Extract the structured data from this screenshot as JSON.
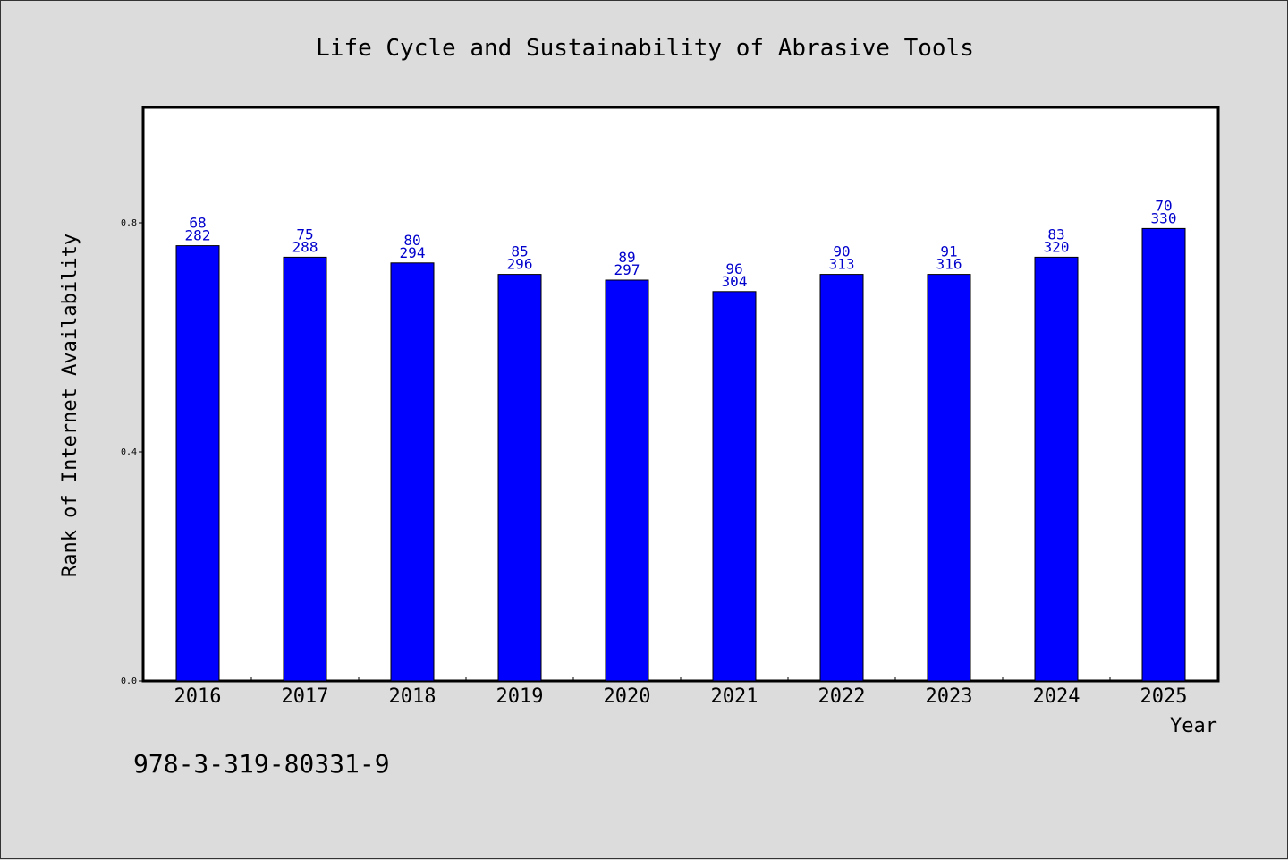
{
  "chart_data": {
    "type": "bar",
    "title": "Life Cycle and Sustainability of Abrasive Tools",
    "xlabel": "Year",
    "ylabel": "Rank of Internet Availability",
    "categories": [
      "2016",
      "2017",
      "2018",
      "2019",
      "2020",
      "2021",
      "2022",
      "2023",
      "2024",
      "2025"
    ],
    "values": [
      0.76,
      0.74,
      0.73,
      0.71,
      0.7,
      0.68,
      0.71,
      0.71,
      0.74,
      0.79
    ],
    "labels_top": [
      "68",
      "75",
      "80",
      "85",
      "89",
      "96",
      "90",
      "91",
      "83",
      "70"
    ],
    "labels_bottom": [
      "282",
      "288",
      "294",
      "296",
      "297",
      "304",
      "313",
      "316",
      "320",
      "330"
    ],
    "yticks": [
      "0.0",
      "0.4",
      "0.8"
    ],
    "ylim": [
      0,
      1.0
    ],
    "grid": false,
    "bar_color": "#0000ff",
    "label_color": "#0000cc"
  },
  "footnote": "978-3-319-80331-9"
}
